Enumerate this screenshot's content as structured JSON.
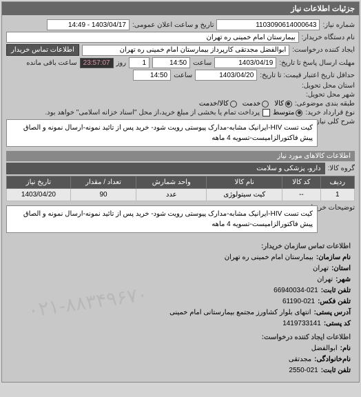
{
  "panel_title": "جزئیات اطلاعات نیاز",
  "fields": {
    "shomare_niaz_label": "شماره نیاز:",
    "shomare_niaz": "1103090614000643",
    "datetime_label": "تاریخ و ساعت اعلان عمومی:",
    "datetime": "1403/04/17 - 14:49",
    "dastgah_label": "نام دستگاه خریدار:",
    "dastgah": "بیمارستان امام خمینی ره  تهران",
    "ijad_label": "ایجاد کننده درخواست:",
    "ijad": "ابوالفضل مجدتقی کارپرداز بیمارستان امام خمینی ره  تهران",
    "contact_btn": "اطلاعات تماس خریدار",
    "mohlat_label": "مهلت ارسال پاسخ تا تاریخ:",
    "mohlat_date": "1403/04/19",
    "saat_label": "ساعت",
    "mohlat_time": "14:50",
    "rooz_label": "روز",
    "rooz": "1",
    "remain_time": "23:57:07",
    "remain_label": "ساعت باقی مانده",
    "hadaghal_label": "حداقل تاریخ اعتبار قیمت: تا تاریخ:",
    "hadaghal_date": "1403/04/20",
    "hadaghal_time": "14:50",
    "ostan_label": "استان محل تحویل:",
    "shahr_label": "شهر محل تحویل:",
    "tabaghe_label": "طبقه بندی موضوعی:",
    "kala": "کالا",
    "khedmat": "خدمت",
    "kala_khedmat": "کالا/خدمت",
    "gharardad_label": "نوع قرارداد خرید:",
    "motavasset": "متوسط",
    "gharardad_note": "پرداخت تمام یا بخشی از مبلغ خرید،از محل \"اسناد خزانه اسلامی\" خواهد بود.",
    "sharh_label": "شرح کلی نیاز:",
    "sharh": "کیت تست HIV-ایرانیک مشابه-مدارک پیوستی رویت شود- خرید پس از تائید نمونه-ارسال نمونه و الصاق پیش فاکتورالزامیست-تسویه 4 ماهه",
    "section_items": "اطلاعات کالاهای مورد نیاز",
    "group_label": "گروه کالا:",
    "group": "دارو، پزشکی و سلامت",
    "tozihat_label": "توضیحات خریدار:",
    "tozihat": "کیت تست HIV-ایرانیک مشابه-مدارک پیوستی رویت شود- خرید پس از تائید نمونه-ارسال نمونه و الصاق پیش فاکتورالزامیست-تسویه 4 ماهه"
  },
  "table": {
    "headers": [
      "ردیف",
      "کد کالا",
      "نام کالا",
      "واحد شمارش",
      "تعداد / مقدار",
      "تاریخ نیاز"
    ],
    "rows": [
      [
        "1",
        "--",
        "کیت سیتولوژی",
        "عدد",
        "90",
        "1403/04/20"
      ]
    ]
  },
  "contact": {
    "h1": "اطلاعات تماس سازمان خریدار:",
    "org_name_k": "نام سازمان:",
    "org_name": "بیمارستان امام خمینی ره تهران",
    "ostan_k": "استان:",
    "ostan": "تهران",
    "shahr_k": "شهر:",
    "shahr": "تهران",
    "tel_k": "تلفن ثابت:",
    "tel": "66940034-021",
    "fax_k": "تلفن فکس:",
    "fax": "61190-021",
    "addr_k": "آدرس پستی:",
    "addr": "انتهای بلوار کشاورز مجتمع بیمارستانی امام خمینی",
    "post_k": "کد پستی:",
    "post": "1419733141",
    "h2": "اطلاعات ایجاد کننده درخواست:",
    "name_k": "نام:",
    "name": "ابوالفضل",
    "lname_k": "نام‌خانوادگی:",
    "lname": "مجدتقی",
    "phone_k": "تلفن ثابت:",
    "phone": "2550-021"
  },
  "watermark": "۰۲۱-۸۸۳۴۹۶۷۰"
}
